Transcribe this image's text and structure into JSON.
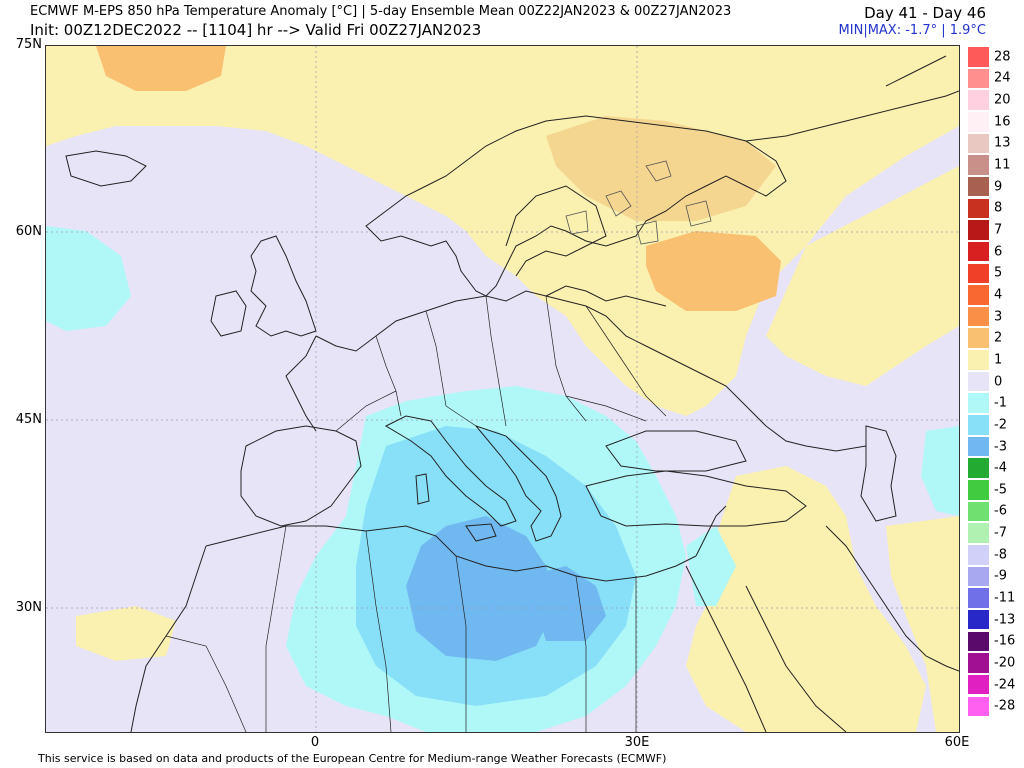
{
  "header": {
    "title": "ECMWF M-EPS 850 hPa Temperature Anomaly [°C] | 5-day Ensemble Mean 00Z22JAN2023 & 00Z27JAN2023",
    "init": "Init: 00Z12DEC2022 -- [1104] hr --> Valid Fri 00Z27JAN2023",
    "days": "Day 41 - Day 46",
    "minmax": "MIN|MAX: -1.7° | 1.9°C"
  },
  "axes": {
    "lat_labels": [
      "75N",
      "60N",
      "45N",
      "30N"
    ],
    "lon_labels": [
      "0",
      "30E",
      "60E"
    ]
  },
  "colorbar": {
    "labels": [
      "28",
      "24",
      "20",
      "16",
      "13",
      "11",
      "9",
      "8",
      "7",
      "6",
      "5",
      "4",
      "3",
      "2",
      "1",
      "0",
      "-1",
      "-2",
      "-3",
      "-4",
      "-5",
      "-6",
      "-7",
      "-8",
      "-9",
      "-11",
      "-13",
      "-16",
      "-20",
      "-24",
      "-28"
    ],
    "colors": [
      "#ff5a5a",
      "#ff8f8f",
      "#ffd0e0",
      "#fff0f5",
      "#e8c8c0",
      "#c89088",
      "#a86050",
      "#c83020",
      "#b81818",
      "#d82020",
      "#f04028",
      "#f86830",
      "#f89048",
      "#f8c070",
      "#faf0b0",
      "#e8e4f8",
      "#b0f8f8",
      "#88e0f8",
      "#70b8f0",
      "#22aa33",
      "#40cc40",
      "#70e070",
      "#b0f0b0",
      "#d0d0f8",
      "#a8a8f0",
      "#7070e8",
      "#2828c8",
      "#5a0a6a",
      "#a01090",
      "#e020c0",
      "#ff60f0"
    ]
  },
  "map": {
    "region": "Europe, North Africa and Middle East",
    "field_colors": {
      "neutral": "#e8e4f8",
      "cold_1": "#b0f8f8",
      "cold_2": "#88e0f8",
      "cold_3": "#70b8f0",
      "warm_1": "#faf0b0",
      "warm_2": "#f8c070"
    }
  },
  "footer": "This service is based on data and products of the European Centre for Medium-range Weather Forecasts (ECMWF)"
}
